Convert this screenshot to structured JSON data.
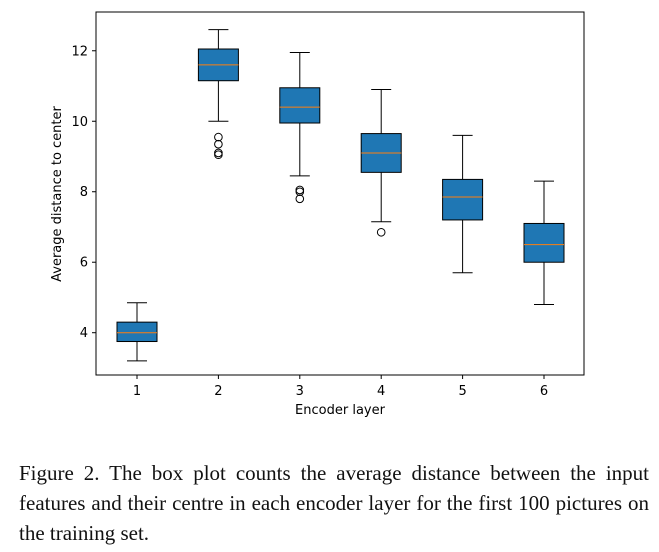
{
  "chart_data": {
    "type": "box",
    "xlabel": "Encoder layer",
    "ylabel": "Average distance to center",
    "ylim": [
      2.8,
      13.1
    ],
    "yticks": [
      4,
      6,
      8,
      10,
      12
    ],
    "categories": [
      "1",
      "2",
      "3",
      "4",
      "5",
      "6"
    ],
    "boxes": [
      {
        "category": "1",
        "whisker_low": 3.2,
        "q1": 3.75,
        "median": 4.0,
        "q3": 4.3,
        "whisker_high": 4.85,
        "outliers": []
      },
      {
        "category": "2",
        "whisker_low": 10.0,
        "q1": 11.15,
        "median": 11.6,
        "q3": 12.05,
        "whisker_high": 12.6,
        "outliers": [
          9.05,
          9.1,
          9.35,
          9.55
        ]
      },
      {
        "category": "3",
        "whisker_low": 8.45,
        "q1": 9.95,
        "median": 10.4,
        "q3": 10.95,
        "whisker_high": 11.95,
        "outliers": [
          7.8,
          8.0,
          8.05
        ]
      },
      {
        "category": "4",
        "whisker_low": 7.15,
        "q1": 8.55,
        "median": 9.1,
        "q3": 9.65,
        "whisker_high": 10.9,
        "outliers": [
          6.85
        ]
      },
      {
        "category": "5",
        "whisker_low": 5.7,
        "q1": 7.2,
        "median": 7.85,
        "q3": 8.35,
        "whisker_high": 9.6,
        "outliers": []
      },
      {
        "category": "6",
        "whisker_low": 4.8,
        "q1": 6.0,
        "median": 6.5,
        "q3": 7.1,
        "whisker_high": 8.3,
        "outliers": []
      }
    ],
    "colors": {
      "box_fill": "#1f77b4",
      "median": "#ff7f0e",
      "line": "#000000"
    }
  },
  "caption": "Figure 2. The box plot counts the average distance between the input features and their centre in each encoder layer for the first 100 pictures on the training set."
}
